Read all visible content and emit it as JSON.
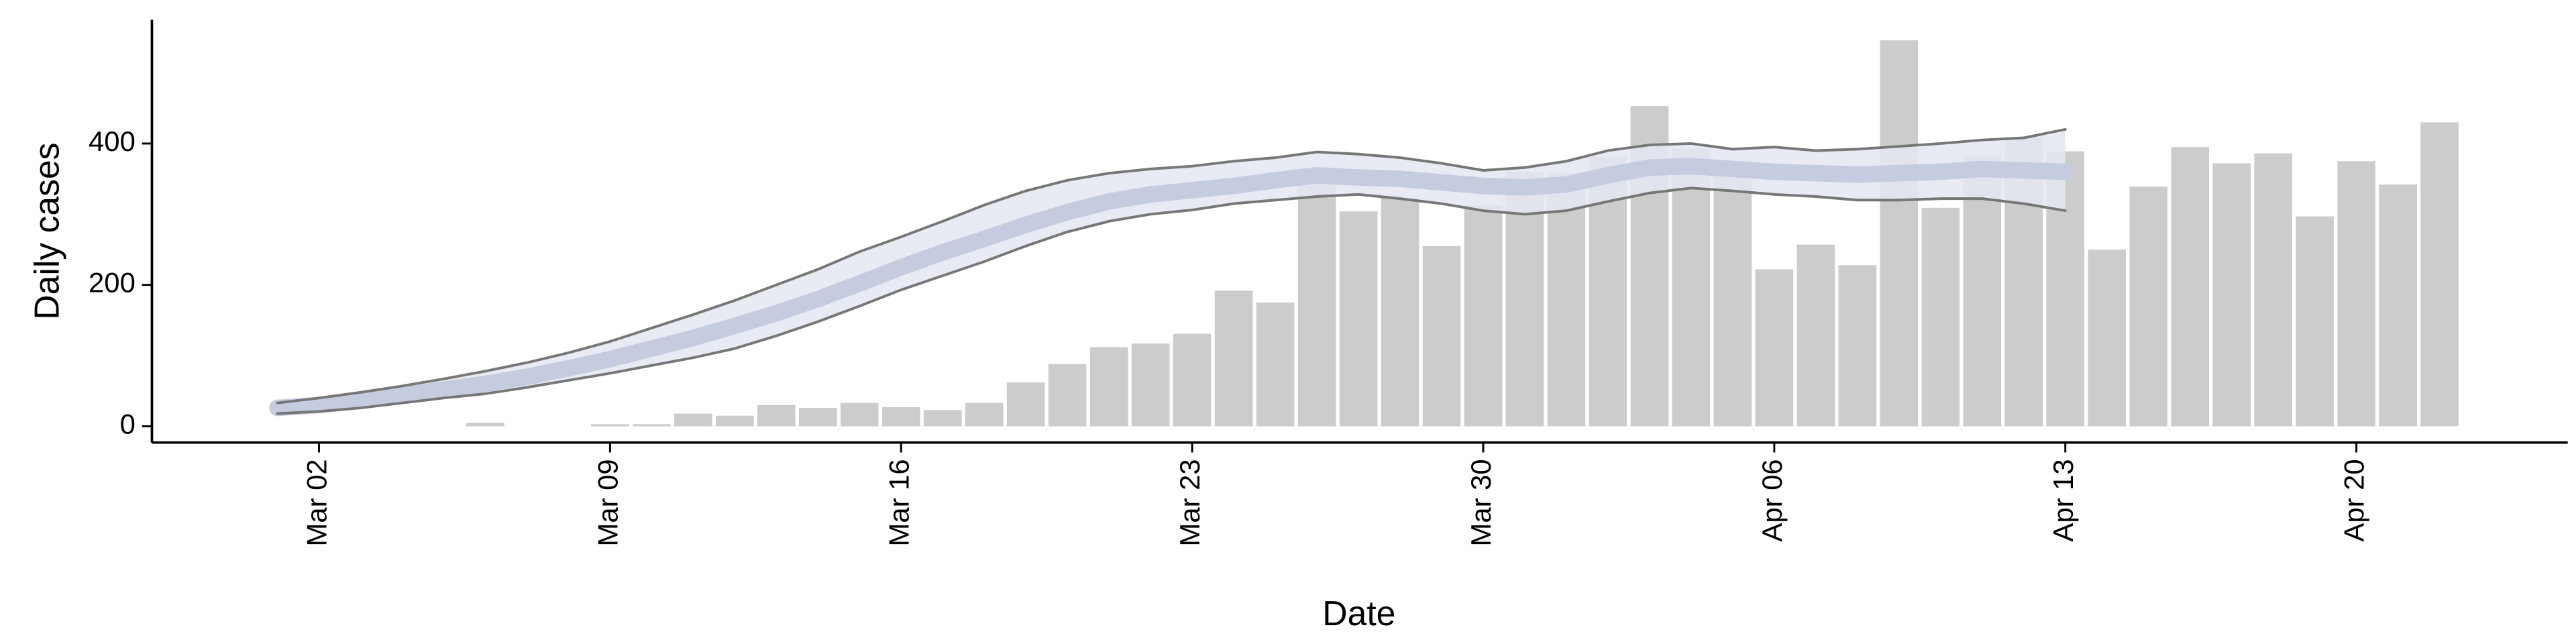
{
  "chart_data": {
    "type": "bar",
    "x_label": "Date",
    "y_label": "Daily cases",
    "categories": [
      null,
      "Mar 02",
      null,
      null,
      null,
      null,
      null,
      null,
      "Mar 09",
      null,
      null,
      null,
      null,
      null,
      null,
      "Mar 16",
      null,
      null,
      null,
      null,
      null,
      null,
      "Mar 23",
      null,
      null,
      null,
      null,
      null,
      null,
      "Mar 30",
      null,
      null,
      null,
      null,
      null,
      null,
      "Apr 06",
      null,
      null,
      null,
      null,
      null,
      null,
      "Apr 13",
      null,
      null,
      null,
      null,
      null,
      null,
      "Apr 20",
      null,
      null
    ],
    "values": [
      0,
      0,
      0,
      0,
      0,
      5,
      0,
      0,
      3,
      3,
      18,
      15,
      30,
      26,
      33,
      27,
      23,
      33,
      62,
      88,
      112,
      117,
      131,
      192,
      175,
      349,
      304,
      323,
      255,
      313,
      360,
      358,
      381,
      453,
      393,
      376,
      222,
      257,
      228,
      546,
      309,
      384,
      409,
      389,
      250,
      339,
      395,
      372,
      386,
      297,
      375,
      342,
      430
    ],
    "color": "#cccccc",
    "band": {
      "upper": [
        33,
        40,
        48,
        57,
        67,
        78,
        90,
        104,
        120,
        139,
        158,
        178,
        200,
        222,
        247,
        268,
        290,
        313,
        333,
        348,
        358,
        364,
        368,
        375,
        380,
        388,
        385,
        380,
        372,
        362,
        366,
        375,
        390,
        398,
        400,
        392,
        395,
        390,
        392,
        396,
        400,
        405,
        408,
        420,
        null,
        null,
        null,
        null,
        null,
        null,
        null,
        null,
        null
      ],
      "lower": [
        18,
        21,
        26,
        33,
        40,
        46,
        55,
        65,
        75,
        86,
        97,
        110,
        128,
        148,
        170,
        193,
        213,
        233,
        255,
        275,
        290,
        300,
        306,
        315,
        320,
        325,
        328,
        322,
        315,
        305,
        300,
        305,
        318,
        330,
        337,
        333,
        328,
        325,
        320,
        320,
        322,
        322,
        315,
        305,
        null,
        null,
        null,
        null,
        null,
        null,
        null,
        null,
        null
      ],
      "median": [
        26,
        30,
        36,
        44,
        52,
        60,
        70,
        82,
        95,
        110,
        125,
        142,
        160,
        180,
        202,
        225,
        246,
        265,
        285,
        303,
        318,
        328,
        334,
        340,
        348,
        355,
        352,
        350,
        345,
        340,
        338,
        342,
        355,
        366,
        368,
        364,
        360,
        358,
        356,
        358,
        360,
        364,
        362,
        360,
        null,
        null,
        null,
        null,
        null,
        null,
        null,
        null,
        null
      ],
      "color": "#e4e8f1",
      "median_color": "#c5cce0",
      "edge_color": "#777777"
    },
    "ylim": [
      -23,
      575
    ],
    "yticks": [
      0,
      200,
      400
    ],
    "grid": false
  }
}
